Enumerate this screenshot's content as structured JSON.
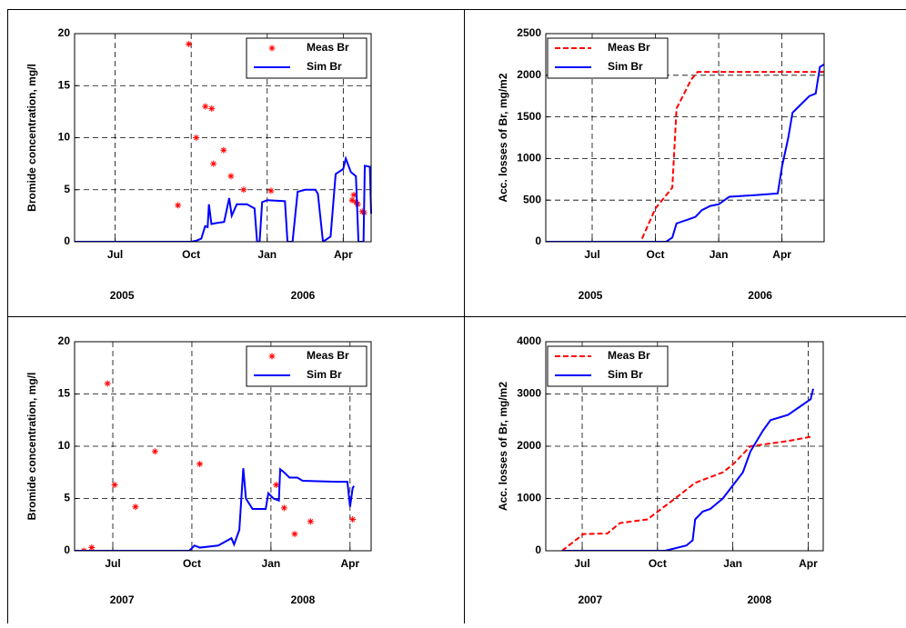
{
  "chart_data": [
    {
      "type": "line",
      "y_label": "Bromide concentration, mg/l",
      "year_labels": [
        "2005",
        "2006"
      ],
      "xlim": [
        4.4,
        16.1
      ],
      "xticks": [
        {
          "value": 6,
          "label": "Jul"
        },
        {
          "value": 9,
          "label": "Oct"
        },
        {
          "value": 12,
          "label": "Jan"
        },
        {
          "value": 15,
          "label": "Apr"
        }
      ],
      "ylim": [
        0,
        20
      ],
      "yticks": [
        0,
        5,
        10,
        15,
        20
      ],
      "grid": true,
      "legend": "upper right",
      "series": [
        {
          "name": "Meas Br",
          "color": "#ff0000",
          "style": "markers",
          "x": [
            8.48,
            8.91,
            9.2,
            9.56,
            9.81,
            9.88,
            10.28,
            10.57,
            11.07,
            12.15,
            15.35,
            15.42,
            15.5,
            15.57,
            15.75,
            15.82
          ],
          "values": [
            3.5,
            19,
            10,
            13,
            12.8,
            7.5,
            8.8,
            6.3,
            5,
            4.9,
            4,
            4.5,
            3.8,
            3.6,
            2.9,
            2.8
          ]
        },
        {
          "name": "Sim Br",
          "color": "#0000ff",
          "style": "solid",
          "x": [
            4.4,
            9.0,
            9.2,
            9.4,
            9.55,
            9.65,
            9.7,
            9.8,
            10.0,
            10.3,
            10.5,
            10.6,
            10.8,
            11.2,
            11.5,
            11.6,
            11.7,
            11.8,
            12.0,
            12.7,
            12.8,
            13.0,
            13.2,
            13.5,
            13.9,
            14.0,
            14.2,
            14.5,
            14.7,
            15.0,
            15.1,
            15.3,
            15.5,
            15.6,
            15.8,
            15.85,
            16.05,
            16.1
          ],
          "values": [
            0,
            0,
            0.1,
            0.3,
            1.5,
            1.4,
            3.6,
            1.7,
            1.8,
            1.9,
            4.2,
            2.5,
            3.6,
            3.6,
            3.2,
            0,
            0,
            3.8,
            4.0,
            3.9,
            0,
            0,
            4.8,
            5.0,
            5.0,
            4.6,
            0,
            0.5,
            6.5,
            7.0,
            8.0,
            6.7,
            6.3,
            0,
            0,
            7.3,
            7.2,
            2.7
          ]
        }
      ]
    },
    {
      "type": "line",
      "y_label": "Acc. losses of Br, mg/m2",
      "year_labels": [
        "2005",
        "2006"
      ],
      "xlim": [
        3.8,
        17.0
      ],
      "xticks": [
        {
          "value": 6,
          "label": "Jul"
        },
        {
          "value": 9,
          "label": "Oct"
        },
        {
          "value": 12,
          "label": "Jan"
        },
        {
          "value": 15,
          "label": "Apr"
        }
      ],
      "ylim": [
        0,
        2500
      ],
      "yticks": [
        0,
        500,
        1000,
        1500,
        2000,
        2500
      ],
      "grid": true,
      "legend": "upper left",
      "series": [
        {
          "name": "Meas Br",
          "color": "#ff0000",
          "style": "dashed",
          "x": [
            3.8,
            8.3,
            9.0,
            9.8,
            10.0,
            10.7,
            11.0,
            17.0
          ],
          "values": [
            0,
            0,
            400,
            650,
            1600,
            1950,
            2040,
            2040
          ]
        },
        {
          "name": "Sim Br",
          "color": "#0000ff",
          "style": "solid",
          "x": [
            3.8,
            9.5,
            9.8,
            10.0,
            10.7,
            10.9,
            11.2,
            11.6,
            12.0,
            12.5,
            13.7,
            14.8,
            15.0,
            15.3,
            15.5,
            15.9,
            16.3,
            16.6,
            16.8,
            17.0
          ],
          "values": [
            0,
            0,
            50,
            220,
            280,
            300,
            380,
            430,
            450,
            540,
            560,
            580,
            900,
            1250,
            1550,
            1650,
            1750,
            1780,
            2100,
            2130
          ]
        }
      ]
    },
    {
      "type": "line",
      "y_label": "Bromide concentration, mg/l",
      "year_labels": [
        "2007",
        "2008"
      ],
      "xlim": [
        4.55,
        15.8
      ],
      "xticks": [
        {
          "value": 6,
          "label": "Jul"
        },
        {
          "value": 9,
          "label": "Oct"
        },
        {
          "value": 12,
          "label": "Jan"
        },
        {
          "value": 15,
          "label": "Apr"
        }
      ],
      "ylim": [
        0,
        20
      ],
      "yticks": [
        0,
        5,
        10,
        15,
        20
      ],
      "grid": true,
      "legend": "upper right",
      "series": [
        {
          "name": "Meas Br",
          "color": "#ff0000",
          "style": "markers",
          "x": [
            4.9,
            5.2,
            5.8,
            6.07,
            6.86,
            7.6,
            9.3,
            12.2,
            12.5,
            12.9,
            13.5,
            15.1
          ],
          "values": [
            0,
            0.3,
            16,
            6.3,
            4.2,
            9.5,
            8.3,
            6.3,
            4.1,
            1.6,
            2.8,
            3.0
          ]
        },
        {
          "name": "Sim Br",
          "color": "#0000ff",
          "style": "solid",
          "x": [
            4.55,
            8.9,
            9.1,
            9.3,
            10.0,
            10.5,
            10.6,
            10.8,
            10.95,
            11.05,
            11.3,
            11.8,
            11.9,
            12.1,
            12.3,
            12.35,
            12.5,
            12.7,
            13.0,
            13.2,
            14.5,
            14.9,
            15.0,
            15.1,
            15.15
          ],
          "values": [
            0,
            0,
            0.5,
            0.3,
            0.5,
            1.2,
            0.6,
            2.0,
            7.9,
            5.0,
            4.0,
            4.0,
            5.5,
            5.0,
            4.8,
            7.8,
            7.5,
            7.0,
            7.0,
            6.7,
            6.6,
            6.6,
            4.2,
            6.0,
            6.2
          ]
        }
      ]
    },
    {
      "type": "line",
      "y_label": "Acc. losses of Br, mg/m2",
      "year_labels": [
        "2007",
        "2008"
      ],
      "xlim": [
        4.55,
        15.6
      ],
      "xticks": [
        {
          "value": 6,
          "label": "Jul"
        },
        {
          "value": 9,
          "label": "Oct"
        },
        {
          "value": 12,
          "label": "Jan"
        },
        {
          "value": 15,
          "label": "Apr"
        }
      ],
      "ylim": [
        0,
        4000
      ],
      "yticks": [
        0,
        1000,
        2000,
        3000,
        4000
      ],
      "grid": true,
      "legend": "upper left",
      "series": [
        {
          "name": "Meas Br",
          "color": "#ff0000",
          "style": "dashed",
          "x": [
            5.2,
            6.05,
            7.0,
            7.5,
            8.6,
            9.7,
            10.5,
            11.6,
            12.0,
            12.7,
            14.2,
            15.1
          ],
          "values": [
            0,
            320,
            330,
            530,
            600,
            1000,
            1300,
            1500,
            1650,
            2000,
            2100,
            2180
          ]
        },
        {
          "name": "Sim Br",
          "color": "#0000ff",
          "style": "solid",
          "x": [
            5.2,
            9.3,
            10.15,
            10.4,
            10.5,
            10.8,
            11.1,
            11.6,
            12.4,
            12.7,
            13.2,
            13.5,
            14.2,
            14.8,
            15.1,
            15.2
          ],
          "values": [
            0,
            0,
            100,
            200,
            600,
            750,
            800,
            1000,
            1500,
            1900,
            2300,
            2500,
            2600,
            2800,
            2900,
            3100
          ]
        }
      ]
    }
  ]
}
